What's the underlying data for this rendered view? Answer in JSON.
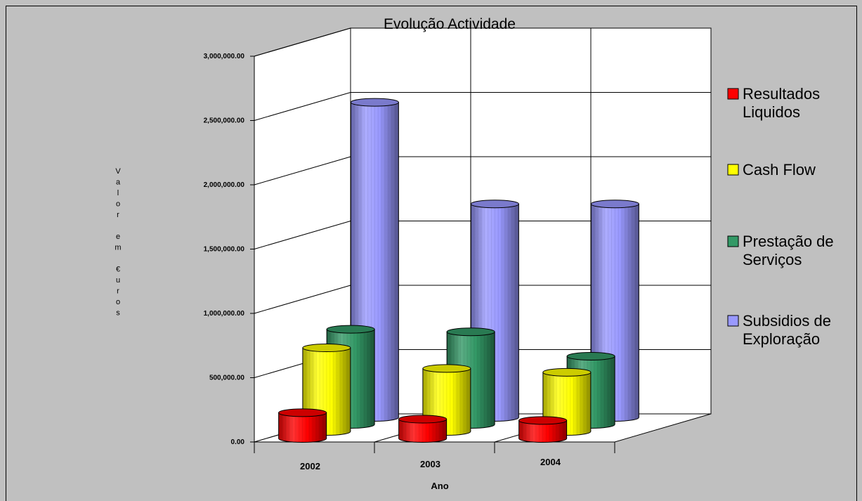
{
  "chart_data": {
    "type": "bar",
    "bar_shape": "cylinder",
    "projection": "3d",
    "title": "Evolução Actividade",
    "xlabel": "Ano",
    "ylabel": "Valor em €uros",
    "categories": [
      "2002",
      "2003",
      "2004"
    ],
    "yticks": [
      "0.00",
      "500,000.00",
      "1,000,000.00",
      "1,500,000.00",
      "2,000,000.00",
      "2,500,000.00",
      "3,000,000.00"
    ],
    "ylim": [
      0,
      3000000
    ],
    "grid": true,
    "legend_position": "right",
    "series": [
      {
        "name": "Resultados Liquidos",
        "color": "#FF0000",
        "values": [
          200000,
          150000,
          140000
        ]
      },
      {
        "name": "Cash Flow",
        "color": "#FFFF00",
        "values": [
          650000,
          490000,
          460000
        ]
      },
      {
        "name": "Prestação de Serviços",
        "color": "#339966",
        "values": [
          740000,
          720000,
          530000
        ]
      },
      {
        "name": "Subsidios de Exploração",
        "color": "#9999FF",
        "values": [
          2450000,
          1660000,
          1660000
        ]
      }
    ],
    "plot_background": "#FFFFFF",
    "chart_background": "#C0C0C0"
  }
}
